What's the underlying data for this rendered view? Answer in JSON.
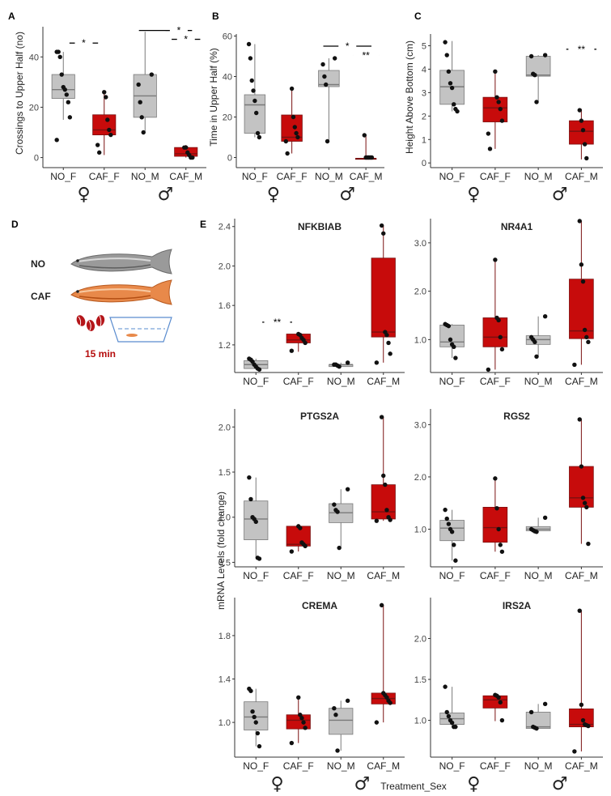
{
  "colors": {
    "NO": "#c3c3c3",
    "CAF": "#c70b0b",
    "NO_stroke": "#7a7a7a",
    "CAF_stroke": "#7a1010",
    "point": "#111111"
  },
  "panel_d": {
    "label": "D",
    "no_label": "NO",
    "caf_label": "CAF",
    "time_label": "15 min",
    "icons": [
      "zebrafish-gray-icon",
      "zebrafish-orange-icon",
      "coffee-beans-icon",
      "tank-icon"
    ]
  },
  "panel_e": {
    "label": "E",
    "shared_ylabel": "mRNA Levels (fold change)",
    "shared_xlabel": "Treatment_Sex"
  },
  "sex_symbols": {
    "female": "♀",
    "male": "♂"
  },
  "chart_data": [
    {
      "id": "A",
      "panel_label": "A",
      "type": "box",
      "title": "",
      "xlabel": "",
      "ylabel": "Crossings to Upper Half (no)",
      "categories": [
        "NO_F",
        "CAF_F",
        "NO_M",
        "CAF_M"
      ],
      "ylim": [
        -4,
        52
      ],
      "yticks": [
        0,
        20,
        40
      ],
      "boxes": [
        {
          "group": "NO",
          "q1": 23.5,
          "median": 27,
          "q3": 33,
          "wmin": 15,
          "wmax": 42
        },
        {
          "group": "CAF",
          "q1": 9,
          "median": 11,
          "q3": 17,
          "wmin": 1,
          "wmax": 26
        },
        {
          "group": "NO",
          "q1": 16,
          "median": 24.5,
          "q3": 33,
          "wmin": 10,
          "wmax": 50
        },
        {
          "group": "CAF",
          "q1": 0.5,
          "median": 1.5,
          "q3": 4,
          "wmin": 0,
          "wmax": 5
        }
      ],
      "points": [
        [
          42,
          42,
          40,
          33,
          28,
          27,
          25,
          22,
          16,
          7
        ],
        [
          26,
          24,
          15,
          11,
          9,
          5,
          2
        ],
        [
          33,
          29,
          22,
          16,
          10
        ],
        [
          4,
          4,
          2,
          1,
          0,
          0
        ]
      ],
      "signif": [
        {
          "x1": 0.65,
          "x2": 1.35,
          "y": 45.5,
          "label": "*"
        },
        {
          "x1": 2.35,
          "x2": 3.0,
          "y": 50.5,
          "label": ""
        },
        {
          "x1": 3.0,
          "x2": 3.65,
          "y": 50.5,
          "label": "*"
        },
        {
          "x1": 3.15,
          "x2": 3.85,
          "y": 47,
          "label": "*"
        }
      ]
    },
    {
      "id": "B",
      "panel_label": "B",
      "type": "box",
      "title": "",
      "xlabel": "",
      "ylabel": "Time in Upper Half (%)",
      "categories": [
        "NO_F",
        "CAF_F",
        "NO_M",
        "CAF_M"
      ],
      "ylim": [
        -5,
        61
      ],
      "yticks": [
        0,
        20,
        40,
        60
      ],
      "boxes": [
        {
          "group": "NO",
          "q1": 12,
          "median": 26,
          "q3": 31,
          "wmin": 10,
          "wmax": 56
        },
        {
          "group": "CAF",
          "q1": 8,
          "median": 10,
          "q3": 21,
          "wmin": 2,
          "wmax": 34
        },
        {
          "group": "NO",
          "q1": 35,
          "median": 36,
          "q3": 43,
          "wmin": 8,
          "wmax": 49
        },
        {
          "group": "CAF",
          "q1": -0.5,
          "median": -0.5,
          "q3": -0.5,
          "wmin": -0.5,
          "wmax": 11
        }
      ],
      "points": [
        [
          56,
          49,
          38,
          33,
          28,
          22,
          12,
          10
        ],
        [
          34,
          20,
          15,
          12,
          10,
          8,
          2
        ],
        [
          49,
          46,
          40,
          36,
          8
        ],
        [
          11,
          0,
          0,
          0,
          0,
          0
        ]
      ],
      "signif": [
        {
          "x1": 2.35,
          "x2": 3.65,
          "y": 55,
          "label": "*"
        },
        {
          "x1": 3.15,
          "x2": 3.85,
          "y": 50.5,
          "label": "**"
        }
      ]
    },
    {
      "id": "C",
      "panel_label": "C",
      "type": "box",
      "title": "",
      "xlabel": "",
      "ylabel": "Height Above Bottom (cm)",
      "categories": [
        "NO_F",
        "CAF_F",
        "NO_M",
        "CAF_M"
      ],
      "ylim": [
        -0.2,
        5.5
      ],
      "yticks": [
        0,
        1,
        2,
        3,
        4,
        5
      ],
      "boxes": [
        {
          "group": "NO",
          "q1": 2.5,
          "median": 3.25,
          "q3": 3.95,
          "wmin": 2.2,
          "wmax": 5.2
        },
        {
          "group": "CAF",
          "q1": 1.75,
          "median": 2.35,
          "q3": 2.8,
          "wmin": 0.6,
          "wmax": 3.9
        },
        {
          "group": "NO",
          "q1": 3.7,
          "median": 3.75,
          "q3": 4.55,
          "wmin": 2.6,
          "wmax": 4.6
        },
        {
          "group": "CAF",
          "q1": 0.8,
          "median": 1.35,
          "q3": 1.8,
          "wmin": 0.15,
          "wmax": 2.3
        }
      ],
      "points": [
        [
          5.15,
          4.6,
          3.9,
          3.4,
          3.2,
          2.5,
          2.3,
          2.2
        ],
        [
          3.9,
          2.8,
          2.6,
          2.3,
          1.8,
          1.25,
          0.6
        ],
        [
          4.6,
          4.55,
          3.8,
          3.75,
          2.6
        ],
        [
          2.25,
          1.8,
          1.4,
          0.8,
          0.2
        ]
      ],
      "signif": [
        {
          "x1": 3.15,
          "x2": 3.85,
          "y": 4.85,
          "label": "**"
        }
      ]
    },
    {
      "id": "NFKBIAB",
      "panel_label": "",
      "type": "box",
      "title": "NFKBIAB",
      "xlabel": "",
      "ylabel": "",
      "categories": [
        "NO_F",
        "CAF_F",
        "NO_M",
        "CAF_M"
      ],
      "ylim": [
        0.92,
        2.48
      ],
      "yticks": [
        1.2,
        1.6,
        2.0,
        2.4
      ],
      "boxes": [
        {
          "group": "NO",
          "q1": 0.96,
          "median": 1.0,
          "q3": 1.04,
          "wmin": 0.95,
          "wmax": 1.06
        },
        {
          "group": "CAF",
          "q1": 1.22,
          "median": 1.25,
          "q3": 1.31,
          "wmin": 1.13,
          "wmax": 1.31
        },
        {
          "group": "NO",
          "q1": 0.98,
          "median": 1.0,
          "q3": 1.0,
          "wmin": 0.98,
          "wmax": 1.02
        },
        {
          "group": "CAF",
          "q1": 1.28,
          "median": 1.33,
          "q3": 2.08,
          "wmin": 1.02,
          "wmax": 2.41
        }
      ],
      "points": [
        [
          1.06,
          1.05,
          1.03,
          1.0,
          0.98,
          0.96,
          0.95
        ],
        [
          1.31,
          1.3,
          1.27,
          1.25,
          1.22,
          1.14
        ],
        [
          1.02,
          1.0,
          1.0,
          0.99,
          0.98
        ],
        [
          2.41,
          2.33,
          1.33,
          1.3,
          1.22,
          1.11,
          1.02
        ]
      ],
      "signif": [
        {
          "x1": 0.65,
          "x2": 1.35,
          "y": 1.43,
          "label": "**"
        }
      ]
    },
    {
      "id": "NR4A1",
      "panel_label": "",
      "type": "box",
      "title": "NR4A1",
      "xlabel": "",
      "ylabel": "",
      "categories": [
        "NO_F",
        "CAF_F",
        "NO_M",
        "CAF_M"
      ],
      "ylim": [
        0.32,
        3.5
      ],
      "yticks": [
        1.0,
        2.0,
        3.0
      ],
      "boxes": [
        {
          "group": "NO",
          "q1": 0.85,
          "median": 0.95,
          "q3": 1.3,
          "wmin": 0.62,
          "wmax": 1.32
        },
        {
          "group": "CAF",
          "q1": 0.85,
          "median": 1.05,
          "q3": 1.45,
          "wmin": 0.38,
          "wmax": 2.65
        },
        {
          "group": "NO",
          "q1": 0.9,
          "median": 1.0,
          "q3": 1.08,
          "wmin": 0.65,
          "wmax": 1.48
        },
        {
          "group": "CAF",
          "q1": 1.02,
          "median": 1.18,
          "q3": 2.25,
          "wmin": 0.48,
          "wmax": 3.45
        }
      ],
      "points": [
        [
          1.32,
          1.3,
          1.28,
          1.0,
          0.9,
          0.85,
          0.62
        ],
        [
          2.65,
          1.45,
          1.4,
          1.05,
          0.8,
          0.38
        ],
        [
          1.48,
          1.05,
          1.0,
          0.95,
          0.65
        ],
        [
          3.45,
          2.55,
          2.2,
          1.2,
          1.05,
          0.95,
          0.48
        ]
      ],
      "signif": []
    },
    {
      "id": "PTGS2A",
      "panel_label": "",
      "type": "box",
      "title": "PTGS2A",
      "xlabel": "",
      "ylabel": "",
      "categories": [
        "NO_F",
        "CAF_F",
        "NO_M",
        "CAF_M"
      ],
      "ylim": [
        0.45,
        2.2
      ],
      "yticks": [
        0.5,
        1.0,
        1.5,
        2.0
      ],
      "boxes": [
        {
          "group": "NO",
          "q1": 0.75,
          "median": 0.98,
          "q3": 1.18,
          "wmin": 0.55,
          "wmax": 1.44
        },
        {
          "group": "CAF",
          "q1": 0.68,
          "median": 0.7,
          "q3": 0.9,
          "wmin": 0.62,
          "wmax": 0.9
        },
        {
          "group": "NO",
          "q1": 0.94,
          "median": 1.05,
          "q3": 1.15,
          "wmin": 0.66,
          "wmax": 1.31
        },
        {
          "group": "CAF",
          "q1": 0.98,
          "median": 1.06,
          "q3": 1.36,
          "wmin": 0.96,
          "wmax": 2.11
        }
      ],
      "points": [
        [
          1.44,
          1.2,
          1.0,
          0.98,
          0.95,
          0.55,
          0.54
        ],
        [
          0.9,
          0.88,
          0.72,
          0.7,
          0.68,
          0.62
        ],
        [
          1.31,
          1.14,
          1.08,
          1.06,
          0.66
        ],
        [
          2.11,
          1.46,
          1.36,
          1.08,
          1.0,
          0.97,
          0.96
        ]
      ],
      "signif": []
    },
    {
      "id": "RGS2",
      "panel_label": "",
      "type": "box",
      "title": "RGS2",
      "xlabel": "",
      "ylabel": "",
      "categories": [
        "NO_F",
        "CAF_F",
        "NO_M",
        "CAF_M"
      ],
      "ylim": [
        0.28,
        3.3
      ],
      "yticks": [
        1.0,
        2.0,
        3.0
      ],
      "boxes": [
        {
          "group": "NO",
          "q1": 0.78,
          "median": 1.02,
          "q3": 1.17,
          "wmin": 0.4,
          "wmax": 1.37
        },
        {
          "group": "CAF",
          "q1": 0.75,
          "median": 1.03,
          "q3": 1.42,
          "wmin": 0.57,
          "wmax": 1.97
        },
        {
          "group": "NO",
          "q1": 0.97,
          "median": 1.0,
          "q3": 1.05,
          "wmin": 0.95,
          "wmax": 1.22
        },
        {
          "group": "CAF",
          "q1": 1.42,
          "median": 1.6,
          "q3": 2.2,
          "wmin": 0.72,
          "wmax": 3.1
        }
      ],
      "points": [
        [
          1.37,
          1.2,
          1.1,
          1.0,
          0.95,
          0.7,
          0.4
        ],
        [
          1.97,
          1.4,
          1.0,
          0.7,
          0.57
        ],
        [
          1.22,
          1.0,
          0.98,
          0.96,
          0.95
        ],
        [
          3.1,
          2.2,
          1.6,
          1.5,
          1.42,
          0.72
        ]
      ],
      "signif": []
    },
    {
      "id": "CREMA",
      "panel_label": "",
      "type": "box",
      "title": "CREMA",
      "xlabel": "",
      "ylabel": "",
      "categories": [
        "NO_F",
        "CAF_F",
        "NO_M",
        "CAF_M"
      ],
      "ylim": [
        0.68,
        2.15
      ],
      "yticks": [
        1.0,
        1.4,
        1.8
      ],
      "boxes": [
        {
          "group": "NO",
          "q1": 0.93,
          "median": 1.05,
          "q3": 1.19,
          "wmin": 0.78,
          "wmax": 1.31
        },
        {
          "group": "CAF",
          "q1": 0.94,
          "median": 1.02,
          "q3": 1.07,
          "wmin": 0.81,
          "wmax": 1.23
        },
        {
          "group": "NO",
          "q1": 0.89,
          "median": 1.02,
          "q3": 1.13,
          "wmin": 0.74,
          "wmax": 1.2
        },
        {
          "group": "CAF",
          "q1": 1.17,
          "median": 1.22,
          "q3": 1.27,
          "wmin": 1.0,
          "wmax": 2.08
        }
      ],
      "points": [
        [
          1.31,
          1.29,
          1.1,
          1.05,
          1.0,
          0.9,
          0.78
        ],
        [
          1.23,
          1.07,
          1.04,
          1.0,
          0.95,
          0.81
        ],
        [
          1.2,
          1.13,
          1.07,
          0.74
        ],
        [
          2.08,
          1.27,
          1.25,
          1.23,
          1.2,
          1.18,
          1.0
        ]
      ],
      "signif": []
    },
    {
      "id": "IRS2A",
      "panel_label": "",
      "type": "box",
      "title": "IRS2A",
      "xlabel": "",
      "ylabel": "",
      "categories": [
        "NO_F",
        "CAF_F",
        "NO_M",
        "CAF_M"
      ],
      "ylim": [
        0.55,
        2.5
      ],
      "yticks": [
        1.0,
        1.5,
        2.0
      ],
      "boxes": [
        {
          "group": "NO",
          "q1": 0.95,
          "median": 1.02,
          "q3": 1.09,
          "wmin": 0.92,
          "wmax": 1.41
        },
        {
          "group": "CAF",
          "q1": 1.15,
          "median": 1.25,
          "q3": 1.3,
          "wmin": 0.99,
          "wmax": 1.31
        },
        {
          "group": "NO",
          "q1": 0.9,
          "median": 0.92,
          "q3": 1.1,
          "wmin": 0.9,
          "wmax": 1.2
        },
        {
          "group": "CAF",
          "q1": 0.92,
          "median": 0.95,
          "q3": 1.14,
          "wmin": 0.62,
          "wmax": 2.34
        }
      ],
      "points": [
        [
          1.41,
          1.1,
          1.05,
          1.0,
          0.97,
          0.92,
          0.92
        ],
        [
          1.31,
          1.3,
          1.28,
          1.22,
          1.0
        ],
        [
          1.2,
          1.1,
          0.92,
          0.91,
          0.9
        ],
        [
          2.34,
          1.19,
          1.0,
          0.95,
          0.94,
          0.93,
          0.62
        ]
      ],
      "signif": []
    }
  ]
}
